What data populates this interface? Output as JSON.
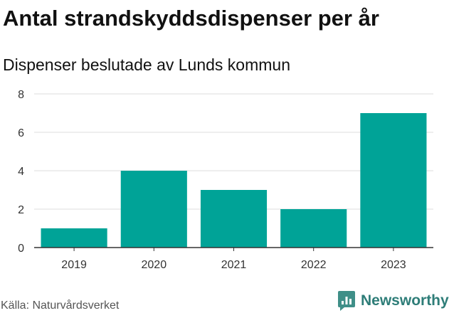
{
  "header": {
    "title": "Antal strandskyddsdispenser per år",
    "subtitle": "Dispenser beslutade av Lunds kommun"
  },
  "footer": {
    "source": "Källa: Naturvårdsverket",
    "brand": "Newsworthy"
  },
  "colors": {
    "bar": "#00A397",
    "grid": "#dddddd",
    "axis": "#333333",
    "brand": "#2e7d78"
  },
  "chart_data": {
    "type": "bar",
    "title": "Antal strandskyddsdispenser per år",
    "subtitle": "Dispenser beslutade av Lunds kommun",
    "categories": [
      "2019",
      "2020",
      "2021",
      "2022",
      "2023"
    ],
    "values": [
      1,
      4,
      3,
      2,
      7
    ],
    "xlabel": "",
    "ylabel": "",
    "ylim": [
      0,
      8
    ],
    "yticks": [
      0,
      2,
      4,
      6,
      8
    ],
    "grid": true
  }
}
